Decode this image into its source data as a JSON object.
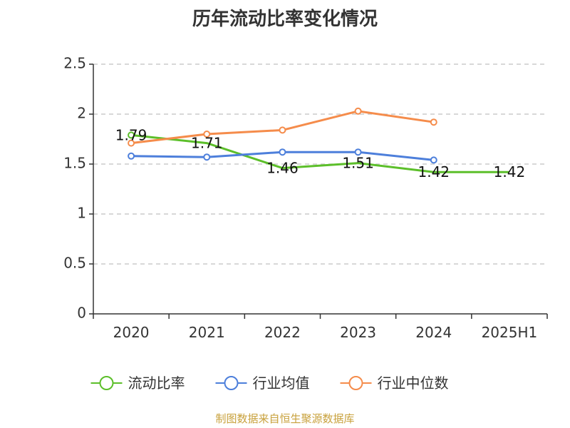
{
  "chart_data": {
    "type": "line",
    "title": "历年流动比率变化情况",
    "categories": [
      "2020",
      "2021",
      "2022",
      "2023",
      "2024",
      "2025H1"
    ],
    "ylim": [
      0,
      2.5
    ],
    "yticks": [
      0,
      0.5,
      1,
      1.5,
      2,
      2.5
    ],
    "ytick_labels": [
      "0",
      "0.5",
      "1",
      "1.5",
      "2",
      "2.5"
    ],
    "grid": "horizontal dashed",
    "legend": "bottom",
    "series": [
      {
        "name": "流动比率",
        "color": "#5cbf2a",
        "values": [
          1.79,
          1.71,
          1.46,
          1.51,
          1.42,
          1.42
        ],
        "labels": [
          "1.79",
          "1.71",
          "1.46",
          "1.51",
          "1.42",
          "1.42"
        ],
        "show_markers": [
          true,
          false,
          false,
          false,
          false,
          false
        ]
      },
      {
        "name": "行业均值",
        "color": "#4d7fdb",
        "values": [
          1.58,
          1.57,
          1.62,
          1.62,
          1.54,
          null
        ]
      },
      {
        "name": "行业中位数",
        "color": "#f58c4b",
        "values": [
          1.71,
          1.8,
          1.84,
          2.03,
          1.92,
          null
        ]
      }
    ]
  },
  "footer": {
    "source": "制图数据来自恒生聚源数据库"
  }
}
